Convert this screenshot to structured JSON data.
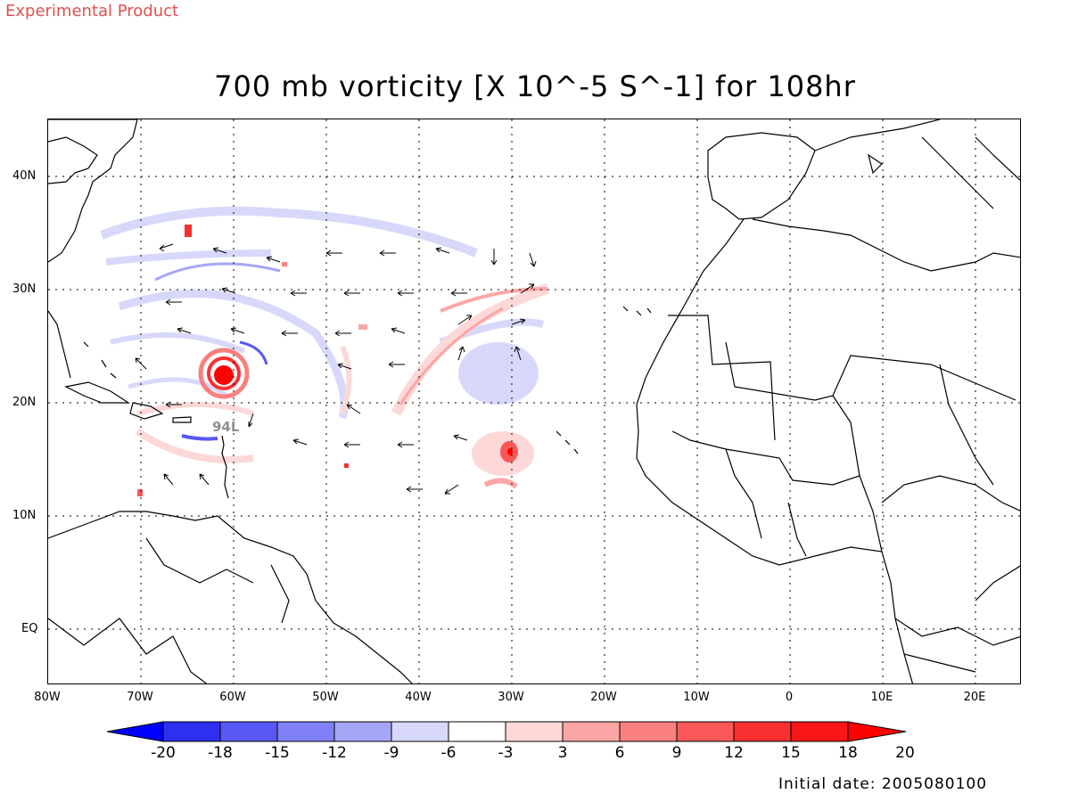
{
  "header": {
    "product": "Experimental Product"
  },
  "title": "700 mb vorticity [X 10^-5 S^-1] for 108hr",
  "axes": {
    "lat_labels": [
      "40N",
      "30N",
      "20N",
      "10N",
      "EQ"
    ],
    "lon_labels": [
      "80W",
      "70W",
      "60W",
      "50W",
      "40W",
      "30W",
      "20W",
      "10W",
      "0",
      "10E",
      "20E"
    ]
  },
  "storm_label": "94L",
  "colorbar": {
    "labels": [
      "-20",
      "-18",
      "-15",
      "-12",
      "-9",
      "-6",
      "-3",
      "3",
      "6",
      "9",
      "12",
      "15",
      "18",
      "20"
    ],
    "colors": [
      "#0000ff",
      "#2f2ff2",
      "#5858f4",
      "#8080f6",
      "#a6a6f8",
      "#d8d8fb",
      "#ffffff",
      "#fdd8d8",
      "#fba6a6",
      "#fa8080",
      "#fa5858",
      "#f83030",
      "#f81616",
      "#ff0000"
    ]
  },
  "footer": {
    "initial_date": "Initial date: 2005080100"
  }
}
